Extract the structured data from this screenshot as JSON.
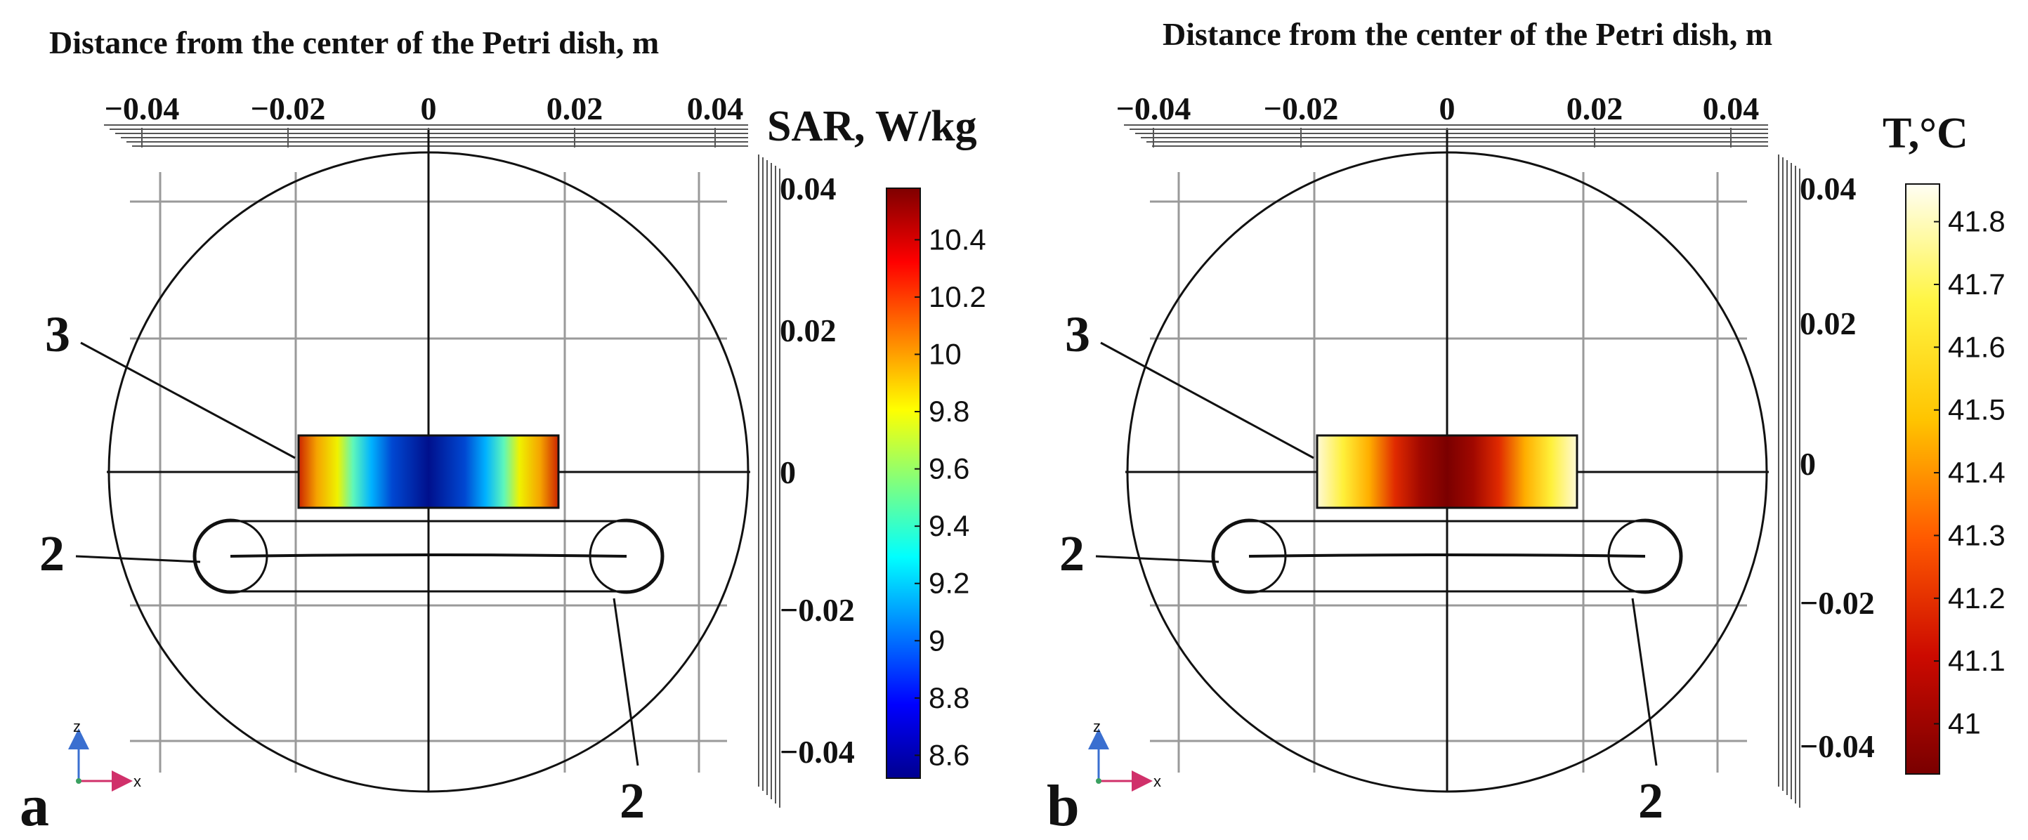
{
  "panels": [
    {
      "id": "a",
      "panel_label": "a",
      "top_axis_title": "Distance from the center of the Petri dish, m",
      "x_ticks": [
        "−0.04",
        "−0.02",
        "0",
        "0.02",
        "0.04"
      ],
      "z_ticks": [
        "0.04",
        "0.02",
        "0",
        "−0.02",
        "−0.04"
      ],
      "colorbar": {
        "title": "SAR, W/kg",
        "ticks": [
          "10.4",
          "10.2",
          "10",
          "9.8",
          "9.6",
          "9.4",
          "9.2",
          "9",
          "8.8",
          "8.6"
        ],
        "colormap": "jet",
        "range": [
          8.52,
          10.58
        ]
      },
      "callouts": [
        "3",
        "2",
        "2"
      ],
      "axis_triad": {
        "up": "z",
        "right": "x"
      }
    },
    {
      "id": "b",
      "panel_label": "b",
      "top_axis_title": "Distance from the center of the Petri dish, m",
      "x_ticks": [
        "−0.04",
        "−0.02",
        "0",
        "0.02",
        "0.04"
      ],
      "z_ticks": [
        "0.04",
        "0.02",
        "0",
        "−0.02",
        "−0.04"
      ],
      "colorbar": {
        "title": "T,°C",
        "ticks": [
          "41.8",
          "41.7",
          "41.6",
          "41.5",
          "41.4",
          "41.3",
          "41.2",
          "41.1",
          "41"
        ],
        "colormap": "heat",
        "range": [
          40.92,
          41.86
        ]
      },
      "callouts": [
        "3",
        "2",
        "2"
      ],
      "axis_triad": {
        "up": "z",
        "right": "x"
      }
    }
  ]
}
